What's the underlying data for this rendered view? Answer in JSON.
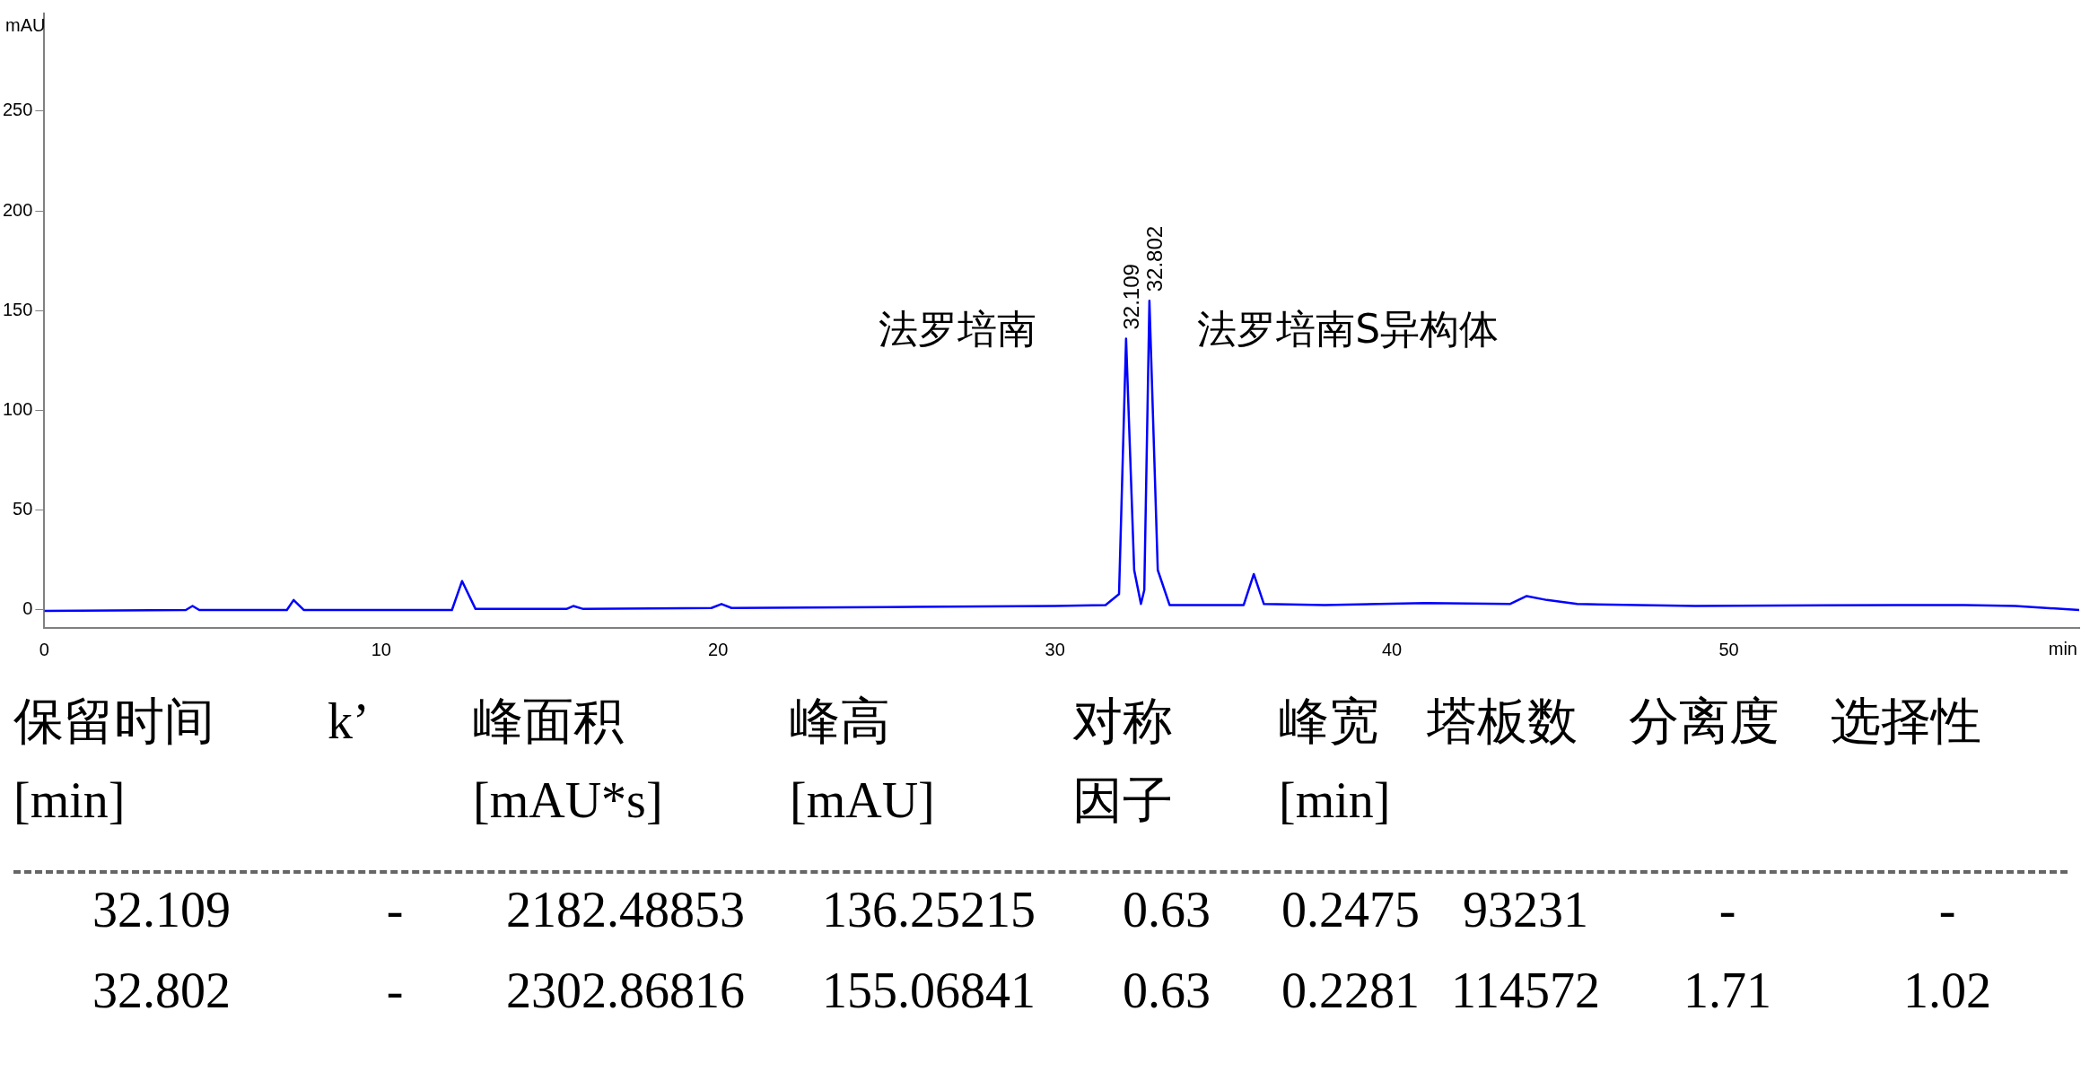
{
  "chart_data": {
    "type": "line",
    "xlabel": "min",
    "ylabel": "mAU",
    "x": [
      0,
      4.2,
      4.4,
      4.6,
      7.2,
      7.4,
      7.7,
      12.1,
      12.4,
      12.8,
      15.5,
      15.7,
      16,
      19.8,
      20.1,
      20.4,
      25,
      30,
      31.5,
      31.9,
      32.109,
      32.35,
      32.55,
      32.65,
      32.802,
      33.05,
      33.4,
      35.6,
      35.9,
      36.2,
      38,
      41,
      43.5,
      44,
      44.6,
      45.5,
      49,
      55,
      57,
      58.5,
      60.4
    ],
    "series": [
      {
        "color": "#0000ff",
        "values": [
          -0.5,
          0,
          2,
          0,
          0,
          5,
          0,
          0,
          14.5,
          0.5,
          0.5,
          2,
          0.5,
          1,
          3,
          1,
          1.5,
          2,
          2.5,
          8,
          136,
          20,
          3,
          10,
          155,
          20,
          2.5,
          2.5,
          18,
          3,
          2.5,
          3.5,
          3,
          7,
          5,
          3,
          2,
          2.5,
          2.5,
          2,
          0
        ],
        "name": null
      }
    ],
    "xlim": [
      0,
      60.4
    ],
    "xticks": [
      0,
      10,
      20,
      30,
      40,
      50
    ],
    "ylim": [
      -9,
      299
    ],
    "yticks": [
      0,
      50,
      100,
      150,
      200,
      250
    ],
    "grid": false,
    "legend": false,
    "marker": "none",
    "line_style": "solid",
    "annotations": [
      {
        "text": "32.109",
        "x": 32.109,
        "y": 136
      },
      {
        "text": "32.802",
        "x": 32.802,
        "y": 155
      },
      "法罗培南",
      "法罗培南S异构体",
      "保留时间\n[min]",
      "k’",
      "峰面积\n[mAU*s]",
      "峰高\n[mAU]",
      "对称因子",
      "峰宽\n[min]",
      "塔板数",
      "分离度",
      "选择性",
      "32.109",
      "-",
      "2182.48853",
      "136.25215",
      "0.63",
      "0.2475",
      "93231",
      "-",
      "-",
      "32.802",
      "-",
      "2302.86816",
      "155.06841",
      "0.63",
      "0.2281",
      "114572",
      "1.71",
      "1.02"
    ]
  }
}
